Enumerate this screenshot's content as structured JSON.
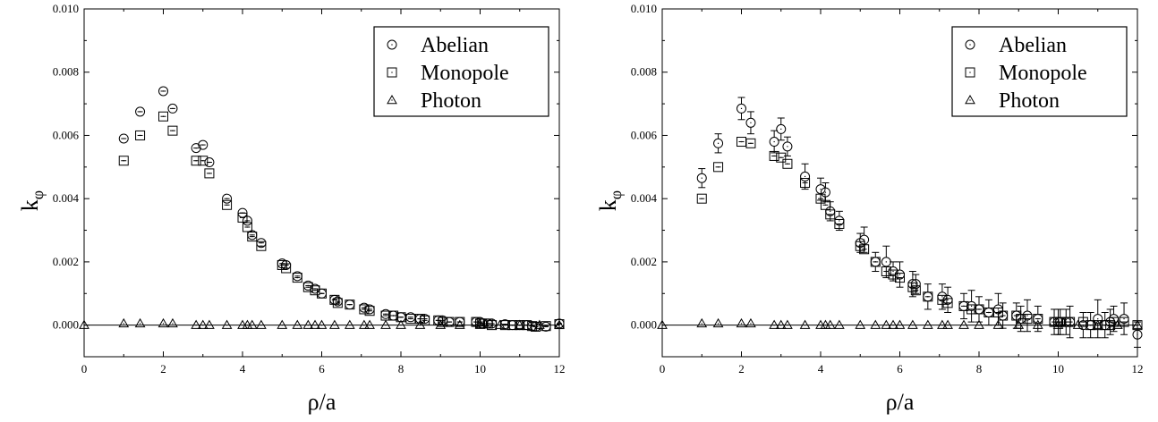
{
  "chart_data": [
    {
      "type": "scatter",
      "title": "",
      "xlabel": "ρ/a",
      "ylabel": "kφ",
      "xlim": [
        0,
        12
      ],
      "ylim": [
        -0.001,
        0.01
      ],
      "xticks": [
        "0",
        "2",
        "4",
        "6",
        "8",
        "10",
        "12"
      ],
      "yticks": [
        "0.000",
        "0.002",
        "0.004",
        "0.006",
        "0.008",
        "0.010"
      ],
      "legend_position": "top-right",
      "grid": false,
      "series": [
        {
          "name": "Abelian",
          "marker": "circle",
          "x": [
            1.0,
            1.414,
            2.0,
            2.236,
            2.828,
            3.0,
            3.162,
            3.606,
            4.0,
            4.123,
            4.243,
            4.472,
            5.0,
            5.099,
            5.385,
            5.657,
            5.831,
            6.0,
            6.325,
            6.403,
            6.708,
            7.071,
            7.211,
            7.616,
            7.81,
            8.0,
            8.246,
            8.485,
            8.602,
            8.944,
            9.055,
            9.22,
            9.487,
            9.899,
            10.0,
            10.05,
            10.198,
            10.296,
            10.63,
            10.817,
            11.0,
            11.18,
            11.314,
            11.402,
            11.662,
            12.0
          ],
          "y": [
            0.0059,
            0.00675,
            0.0074,
            0.00685,
            0.0056,
            0.0057,
            0.00515,
            0.004,
            0.00355,
            0.0033,
            0.00285,
            0.0026,
            0.00195,
            0.0019,
            0.00155,
            0.00125,
            0.00115,
            0.001,
            0.0008,
            0.00075,
            0.00065,
            0.00055,
            0.0005,
            0.00035,
            0.0003,
            0.00025,
            0.00025,
            0.0002,
            0.0002,
            0.00015,
            0.00015,
            0.0001,
            0.0001,
            0.0001,
            0.0001,
            5e-05,
            5e-05,
            5e-05,
            3e-05,
            0.0,
            0.0,
            0.0,
            -3e-05,
            -5e-05,
            -5e-05,
            5e-05
          ],
          "err": [
            8e-05,
            8e-05,
            8e-05,
            8e-05,
            8e-05,
            8e-05,
            8e-05,
            8e-05,
            6e-05,
            6e-05,
            6e-05,
            6e-05,
            6e-05,
            6e-05,
            6e-05,
            5e-05,
            5e-05,
            5e-05,
            5e-05,
            5e-05,
            5e-05,
            5e-05,
            5e-05,
            5e-05,
            5e-05,
            5e-05,
            5e-05,
            5e-05,
            5e-05,
            5e-05,
            5e-05,
            5e-05,
            5e-05,
            5e-05,
            5e-05,
            5e-05,
            5e-05,
            5e-05,
            5e-05,
            5e-05,
            5e-05,
            5e-05,
            5e-05,
            5e-05,
            5e-05,
            5e-05
          ]
        },
        {
          "name": "Monopole",
          "marker": "square",
          "x": [
            1.0,
            1.414,
            2.0,
            2.236,
            2.828,
            3.0,
            3.162,
            3.606,
            4.0,
            4.123,
            4.243,
            4.472,
            5.0,
            5.099,
            5.385,
            5.657,
            5.831,
            6.0,
            6.325,
            6.403,
            6.708,
            7.071,
            7.211,
            7.616,
            7.81,
            8.0,
            8.246,
            8.485,
            8.602,
            8.944,
            9.055,
            9.22,
            9.487,
            9.899,
            10.0,
            10.05,
            10.198,
            10.296,
            10.63,
            10.817,
            11.0,
            11.18,
            11.314,
            11.402,
            11.662,
            12.0
          ],
          "y": [
            0.0052,
            0.006,
            0.0066,
            0.00615,
            0.0052,
            0.0052,
            0.0048,
            0.0038,
            0.0034,
            0.0031,
            0.0028,
            0.0025,
            0.0019,
            0.0018,
            0.0015,
            0.0012,
            0.0011,
            0.001,
            0.0008,
            0.0007,
            0.00065,
            0.0005,
            0.00045,
            0.0003,
            0.0003,
            0.00025,
            0.0002,
            0.0002,
            0.00015,
            0.00015,
            0.0001,
            0.0001,
            0.0001,
            0.0001,
            5e-05,
            5e-05,
            5e-05,
            0.0,
            0.0,
            0.0,
            0.0,
            0.0,
            -3e-05,
            -5e-05,
            -3e-05,
            3e-05
          ],
          "err": [
            8e-05,
            8e-05,
            8e-05,
            8e-05,
            8e-05,
            8e-05,
            8e-05,
            8e-05,
            6e-05,
            6e-05,
            6e-05,
            6e-05,
            6e-05,
            6e-05,
            6e-05,
            5e-05,
            5e-05,
            5e-05,
            5e-05,
            5e-05,
            5e-05,
            5e-05,
            5e-05,
            5e-05,
            5e-05,
            5e-05,
            5e-05,
            5e-05,
            5e-05,
            5e-05,
            5e-05,
            5e-05,
            5e-05,
            5e-05,
            5e-05,
            5e-05,
            5e-05,
            5e-05,
            5e-05,
            5e-05,
            5e-05,
            5e-05,
            5e-05,
            5e-05,
            5e-05,
            5e-05
          ]
        },
        {
          "name": "Photon",
          "marker": "triangle",
          "x": [
            0.0,
            1.0,
            1.414,
            2.0,
            2.236,
            2.828,
            3.0,
            3.162,
            3.606,
            4.0,
            4.123,
            4.243,
            4.472,
            5.0,
            5.385,
            5.657,
            5.831,
            6.0,
            6.325,
            6.708,
            7.071,
            7.211,
            7.616,
            8.0,
            8.485,
            9.0,
            9.487,
            10.0,
            10.5,
            11.0,
            11.5,
            12.0
          ],
          "y": [
            0.0,
            5e-05,
            5e-05,
            5e-05,
            5e-05,
            0.0,
            0.0,
            0.0,
            0.0,
            0.0,
            0.0,
            0.0,
            0.0,
            0.0,
            0.0,
            0.0,
            0.0,
            0.0,
            0.0,
            0.0,
            0.0,
            0.0,
            0.0,
            0.0,
            0.0,
            0.0,
            0.0,
            0.0,
            0.0,
            0.0,
            0.0,
            0.0
          ],
          "err": [
            0,
            0,
            0,
            0,
            0,
            0,
            0,
            0,
            0,
            0,
            0,
            0,
            0,
            0,
            0,
            0,
            0,
            0,
            0,
            0,
            0,
            0,
            0,
            0,
            0,
            0,
            0,
            0,
            0,
            0,
            0,
            0
          ]
        }
      ]
    },
    {
      "type": "scatter",
      "title": "",
      "xlabel": "ρ/a",
      "ylabel": "kφ",
      "xlim": [
        0,
        12
      ],
      "ylim": [
        -0.001,
        0.01
      ],
      "xticks": [
        "0",
        "2",
        "4",
        "6",
        "8",
        "10",
        "12"
      ],
      "yticks": [
        "0.000",
        "0.002",
        "0.004",
        "0.006",
        "0.008",
        "0.010"
      ],
      "legend_position": "top-right",
      "grid": false,
      "series": [
        {
          "name": "Abelian",
          "marker": "circle",
          "x": [
            1.0,
            1.414,
            2.0,
            2.236,
            2.828,
            3.0,
            3.162,
            3.606,
            4.0,
            4.123,
            4.243,
            4.472,
            5.0,
            5.099,
            5.385,
            5.657,
            5.831,
            6.0,
            6.325,
            6.403,
            6.708,
            7.071,
            7.211,
            7.616,
            7.81,
            8.0,
            8.246,
            8.485,
            8.602,
            8.944,
            9.055,
            9.22,
            9.487,
            9.899,
            10.0,
            10.05,
            10.198,
            10.296,
            10.63,
            10.817,
            11.0,
            11.18,
            11.314,
            11.402,
            11.662,
            12.0
          ],
          "y": [
            0.00465,
            0.00575,
            0.00685,
            0.0064,
            0.0058,
            0.0062,
            0.00565,
            0.0047,
            0.0043,
            0.0042,
            0.0036,
            0.0033,
            0.0026,
            0.0027,
            0.002,
            0.002,
            0.0017,
            0.0016,
            0.0013,
            0.0013,
            0.0009,
            0.0009,
            0.0008,
            0.0006,
            0.0006,
            0.0005,
            0.0004,
            0.0005,
            0.0003,
            0.0003,
            0.0002,
            0.0003,
            0.0002,
            0.0001,
            0.0001,
            0.0001,
            0.0001,
            0.0001,
            0.0,
            0.0,
            0.0002,
            0.0,
            0.0001,
            0.0002,
            0.0002,
            -0.0003
          ],
          "err": [
            0.0003,
            0.0003,
            0.00035,
            0.00035,
            0.00035,
            0.00035,
            0.0003,
            0.0004,
            0.00035,
            0.0003,
            0.0003,
            0.0003,
            0.0003,
            0.0004,
            0.0003,
            0.0005,
            0.0003,
            0.0004,
            0.0004,
            0.0003,
            0.0004,
            0.0004,
            0.0004,
            0.0004,
            0.0005,
            0.0004,
            0.0004,
            0.0005,
            0.0004,
            0.0004,
            0.0004,
            0.0005,
            0.0004,
            0.0004,
            0.0004,
            0.0004,
            0.0004,
            0.0005,
            0.0004,
            0.0004,
            0.0006,
            0.0004,
            0.0004,
            0.0004,
            0.0005,
            0.0004
          ]
        },
        {
          "name": "Monopole",
          "marker": "square",
          "x": [
            1.0,
            1.414,
            2.0,
            2.236,
            2.828,
            3.0,
            3.162,
            3.606,
            4.0,
            4.123,
            4.243,
            4.472,
            5.0,
            5.099,
            5.385,
            5.657,
            5.831,
            6.0,
            6.325,
            6.403,
            6.708,
            7.071,
            7.211,
            7.616,
            7.81,
            8.0,
            8.246,
            8.485,
            8.602,
            8.944,
            9.055,
            9.22,
            9.487,
            9.899,
            10.0,
            10.05,
            10.198,
            10.296,
            10.63,
            10.817,
            11.0,
            11.18,
            11.314,
            11.402,
            11.662,
            12.0
          ],
          "y": [
            0.004,
            0.005,
            0.0058,
            0.00575,
            0.00535,
            0.0053,
            0.0051,
            0.0045,
            0.004,
            0.0038,
            0.0035,
            0.0032,
            0.0025,
            0.0024,
            0.002,
            0.0017,
            0.0016,
            0.0015,
            0.0012,
            0.0011,
            0.0009,
            0.0008,
            0.0007,
            0.0006,
            0.0005,
            0.0005,
            0.0004,
            0.0004,
            0.0003,
            0.0003,
            0.0002,
            0.0002,
            0.0002,
            0.0001,
            0.0001,
            0.0001,
            0.0001,
            0.0001,
            0.0001,
            0.0,
            0.0,
            0.0,
            0.0,
            0.0001,
            0.0001,
            0.0
          ],
          "err": [
            0.0001,
            0.0001,
            0.0001,
            0.0001,
            0.0001,
            0.0001,
            0.0001,
            0.0001,
            0.0001,
            0.0001,
            0.0001,
            0.0001,
            0.0001,
            0.0001,
            0.0001,
            0.0001,
            0.0001,
            0.0001,
            0.0001,
            0.0001,
            0.0001,
            0.0001,
            0.0001,
            0.0001,
            0.0001,
            0.0001,
            0.0001,
            0.0001,
            0.0001,
            0.0001,
            0.0001,
            0.0001,
            0.0001,
            0.0001,
            0.0001,
            0.0001,
            0.0001,
            0.0001,
            0.0001,
            0.0001,
            0.0001,
            0.0001,
            0.0001,
            0.0001,
            0.0001,
            0.0001
          ]
        },
        {
          "name": "Photon",
          "marker": "triangle",
          "x": [
            0.0,
            1.0,
            1.414,
            2.0,
            2.236,
            2.828,
            3.0,
            3.162,
            3.606,
            4.0,
            4.123,
            4.243,
            4.472,
            5.0,
            5.385,
            5.657,
            5.831,
            6.0,
            6.325,
            6.708,
            7.071,
            7.211,
            7.616,
            8.0,
            8.485,
            9.0,
            9.487,
            10.0,
            10.5,
            11.0,
            11.5,
            12.0
          ],
          "y": [
            0.0,
            5e-05,
            5e-05,
            5e-05,
            5e-05,
            0.0,
            0.0,
            0.0,
            0.0,
            0.0,
            0.0,
            0.0,
            0.0,
            0.0,
            0.0,
            0.0,
            0.0,
            0.0,
            0.0,
            0.0,
            0.0,
            0.0,
            0.0,
            0.0,
            0.0,
            0.0,
            0.0,
            0.0,
            0.0,
            0.0,
            0.0,
            0.0
          ],
          "err": [
            0,
            0,
            0,
            0,
            0,
            0,
            0,
            0,
            0,
            0,
            0,
            0,
            0,
            0,
            0,
            0,
            0,
            0,
            0,
            0,
            0,
            0,
            0,
            0,
            0,
            0,
            0,
            0,
            0,
            0,
            0,
            0
          ]
        }
      ]
    }
  ]
}
